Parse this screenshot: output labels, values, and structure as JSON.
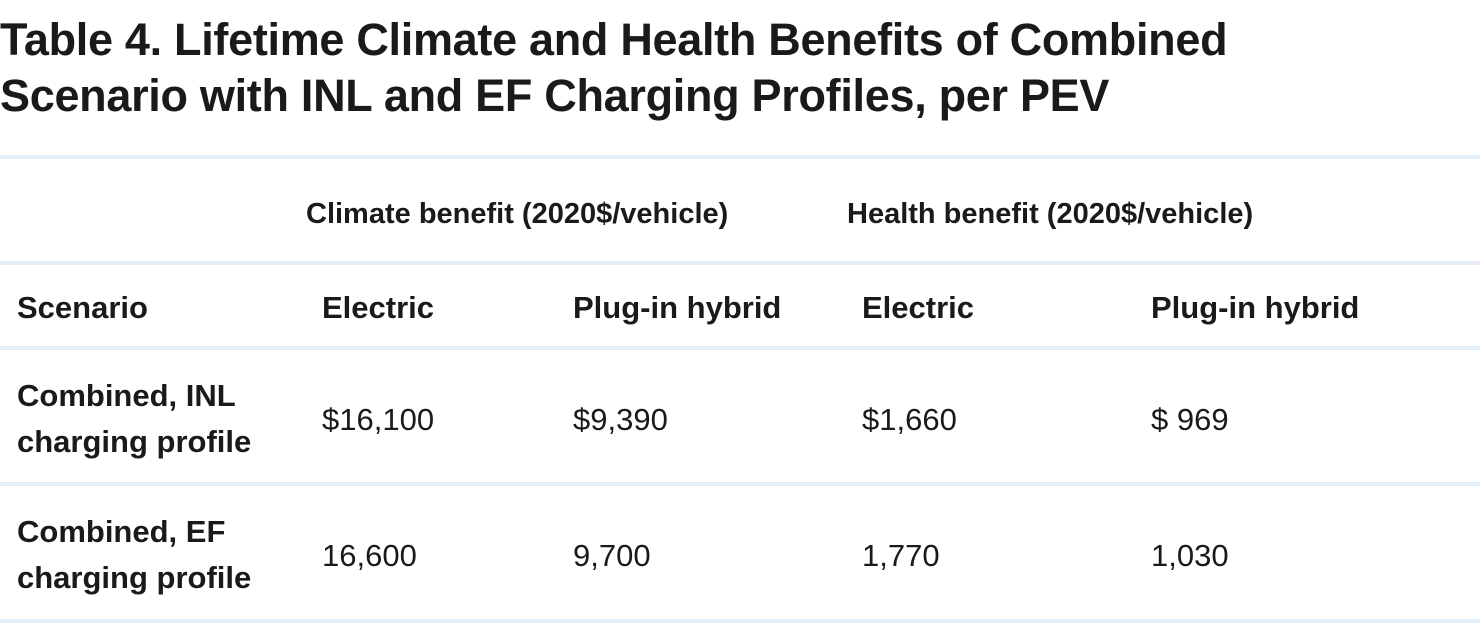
{
  "table": {
    "title_line1": "Table 4.  Lifetime Climate and Health Benefits of Combined",
    "title_line2": "Scenario with INL and EF Charging Profiles, per PEV",
    "group_headers": {
      "climate": "Climate benefit (2020$/vehicle)",
      "health": "Health benefit (2020$/vehicle)"
    },
    "column_headers": {
      "scenario": "Scenario",
      "climate_electric": "Electric",
      "climate_phev": "Plug-in hybrid",
      "health_electric": "Electric",
      "health_phev": "Plug-in hybrid"
    },
    "rows": [
      {
        "label_line1": "Combined, INL",
        "label_line2": "charging profile",
        "climate_electric": "$16,100",
        "climate_phev": "$9,390",
        "health_electric": "$1,660",
        "health_phev": "$ 969"
      },
      {
        "label_line1": "Combined, EF",
        "label_line2": "charging profile",
        "climate_electric": "16,600",
        "climate_phev": "9,700",
        "health_electric": "1,770",
        "health_phev": "1,030"
      }
    ]
  }
}
